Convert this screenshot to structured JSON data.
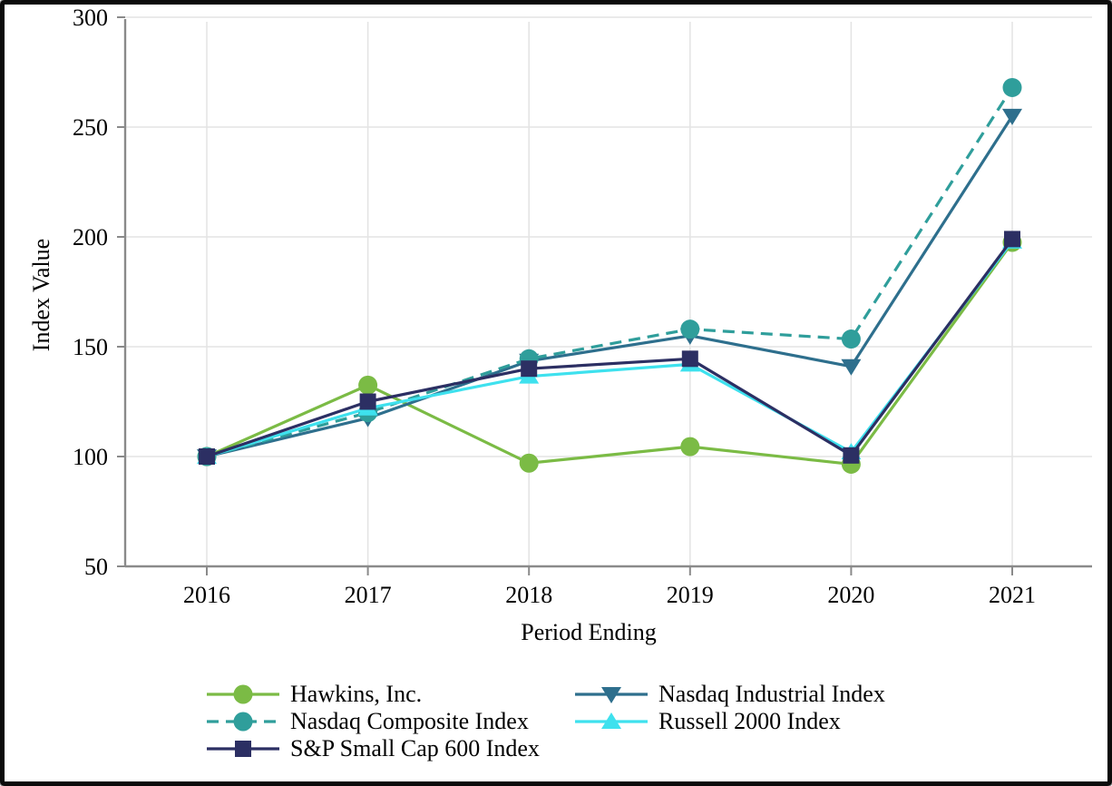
{
  "chart_data": {
    "type": "line",
    "title": "",
    "xlabel": "Period Ending",
    "ylabel": "Index Value",
    "categories": [
      "2016",
      "2017",
      "2018",
      "2019",
      "2020",
      "2021"
    ],
    "ylim": [
      50,
      300
    ],
    "yticks": [
      50,
      100,
      150,
      200,
      250,
      300
    ],
    "grid": true,
    "legend_position": "bottom",
    "series": [
      {
        "name": "Hawkins, Inc.",
        "color": "#7BBB45",
        "marker": "circle",
        "line": "solid",
        "values": [
          100,
          132.5,
          97,
          104.5,
          96.5,
          197.5
        ]
      },
      {
        "name": "Nasdaq Industrial Index",
        "color": "#2E6F8D",
        "marker": "triangle-down",
        "line": "solid",
        "values": [
          100,
          117.5,
          143.5,
          155,
          141,
          255
        ]
      },
      {
        "name": "Nasdaq Composite Index",
        "color": "#2F9E9B",
        "marker": "circle",
        "line": "dashed",
        "values": [
          100,
          120,
          144.5,
          158,
          153.5,
          268
        ]
      },
      {
        "name": "Russell 2000 Index",
        "color": "#3EE1EE",
        "marker": "triangle-up",
        "line": "solid",
        "values": [
          100,
          122,
          136.5,
          142,
          102,
          198
        ]
      },
      {
        "name": "S&P Small Cap 600 Index",
        "color": "#2C2F63",
        "marker": "square",
        "line": "solid",
        "values": [
          100,
          125,
          140,
          144.5,
          100.5,
          199
        ]
      }
    ],
    "legend_columns": [
      [
        "Hawkins, Inc.",
        "Nasdaq Composite Index",
        "S&P Small Cap 600 Index"
      ],
      [
        "Nasdaq Industrial Index",
        "Russell 2000 Index"
      ]
    ]
  },
  "style": {
    "background": "#FFFFFF",
    "frame_color": "#0B0B0B",
    "grid_color": "#E4E4E4",
    "axis_color": "#8A8A8A",
    "text_color": "#000000"
  }
}
